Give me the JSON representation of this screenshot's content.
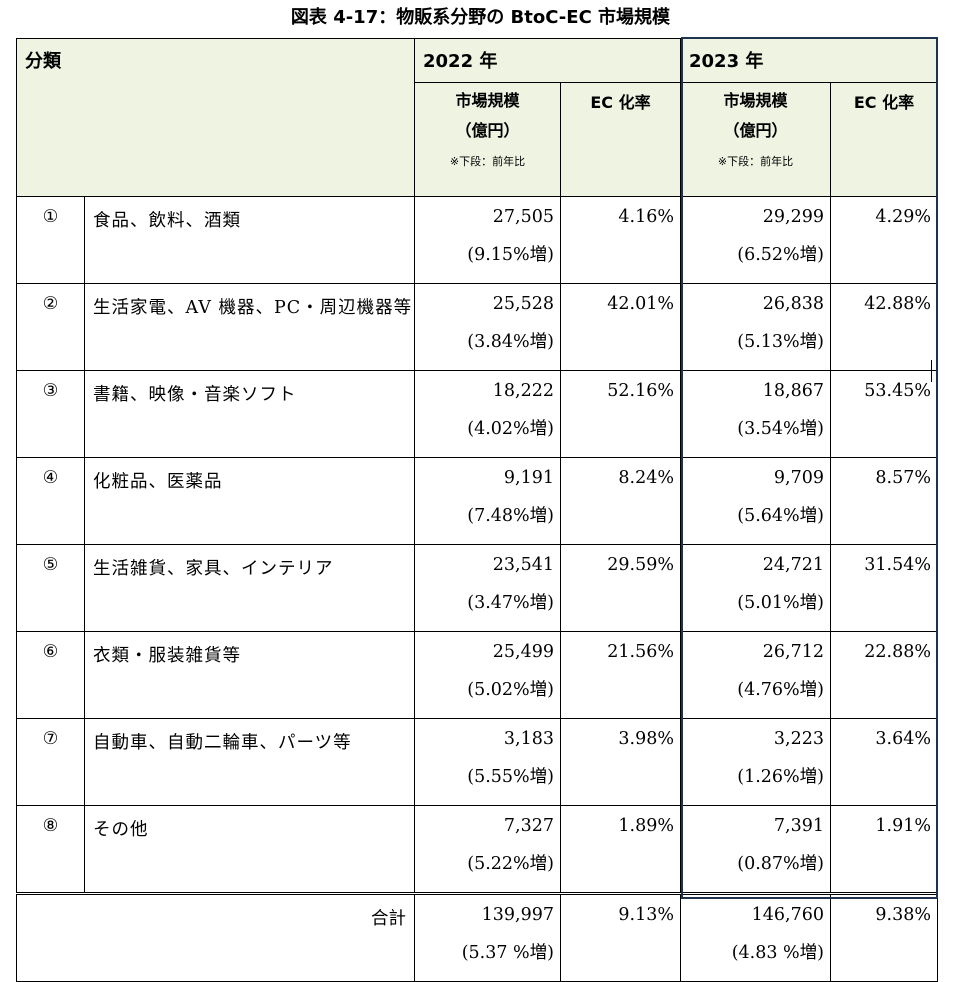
{
  "title": "図表 4-17：物販系分野の BtoC-EC 市場規模",
  "header": {
    "category": "分類",
    "year_2022": "2022 年",
    "year_2023": "2023 年",
    "market_size_l1": "市場規模",
    "market_size_l2": "（億円）",
    "market_size_note": "※下段：前年比",
    "ec_rate": "EC 化率"
  },
  "rows": [
    {
      "no": "①",
      "category": "食品、飲料、酒類",
      "m2022": "27,505",
      "g2022": "(9.15%増)",
      "ec2022": "4.16%",
      "m2023": "29,299",
      "g2023": "(6.52%増)",
      "ec2023": "4.29%"
    },
    {
      "no": "②",
      "category": "生活家電、AV 機器、PC・周辺機器等",
      "m2022": "25,528",
      "g2022": "(3.84%増)",
      "ec2022": "42.01%",
      "m2023": "26,838",
      "g2023": "(5.13%増)",
      "ec2023": "42.88%"
    },
    {
      "no": "③",
      "category": "書籍、映像・音楽ソフト",
      "m2022": "18,222",
      "g2022": "(4.02%増)",
      "ec2022": "52.16%",
      "m2023": "18,867",
      "g2023": "(3.54%増)",
      "ec2023": "53.45%"
    },
    {
      "no": "④",
      "category": "化粧品、医薬品",
      "m2022": "9,191",
      "g2022": "(7.48%増)",
      "ec2022": "8.24%",
      "m2023": "9,709",
      "g2023": "(5.64%増)",
      "ec2023": "8.57%"
    },
    {
      "no": "⑤",
      "category": "生活雑貨、家具、インテリア",
      "m2022": "23,541",
      "g2022": "(3.47%増)",
      "ec2022": "29.59%",
      "m2023": "24,721",
      "g2023": "(5.01%増)",
      "ec2023": "31.54%"
    },
    {
      "no": "⑥",
      "category": "衣類・服装雑貨等",
      "m2022": "25,499",
      "g2022": "(5.02%増)",
      "ec2022": "21.56%",
      "m2023": "26,712",
      "g2023": "(4.76%増)",
      "ec2023": "22.88%"
    },
    {
      "no": "⑦",
      "category": "自動車、自動二輪車、パーツ等",
      "m2022": "3,183",
      "g2022": "(5.55%増)",
      "ec2022": "3.98%",
      "m2023": "3,223",
      "g2023": "(1.26%増)",
      "ec2023": "3.64%"
    },
    {
      "no": "⑧",
      "category": "その他",
      "m2022": "7,327",
      "g2022": "(5.22%増)",
      "ec2022": "1.89%",
      "m2023": "7,391",
      "g2023": "(0.87%増)",
      "ec2023": "1.91%"
    }
  ],
  "total": {
    "label": "合計",
    "m2022": "139,997",
    "g2022": "(5.37 %増)",
    "ec2022": "9.13%",
    "m2023": "146,760",
    "g2023": "(4.83 %増)",
    "ec2023": "9.38%"
  }
}
